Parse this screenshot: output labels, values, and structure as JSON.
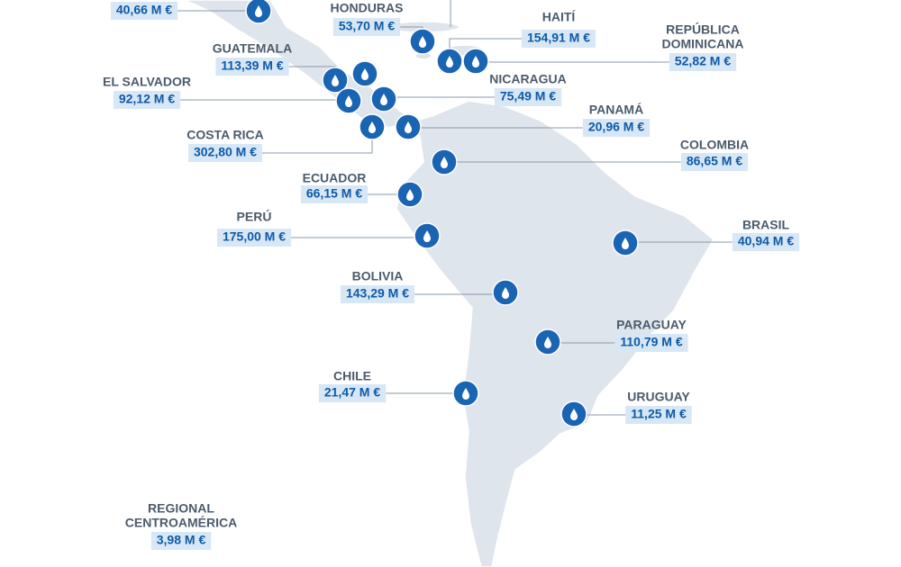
{
  "regions": [
    {
      "amount": "40,66 M €"
    },
    {
      "name_lines": [
        "HONDURAS"
      ],
      "amount": "53,70 M €"
    },
    {
      "name_lines": [
        "HAITÍ"
      ],
      "amount": "154,91 M €"
    },
    {
      "name_lines": [
        "REPÚBLICA",
        "DOMINICANA"
      ],
      "amount": "52,82 M €"
    },
    {
      "name_lines": [
        "GUATEMALA"
      ],
      "amount": "113,39 M €"
    },
    {
      "name_lines": [
        "EL SALVADOR"
      ],
      "amount": "92,12 M €"
    },
    {
      "name_lines": [
        "NICARAGUA"
      ],
      "amount": "75,49 M €"
    },
    {
      "name_lines": [
        "PANAMÁ"
      ],
      "amount": "20,96 M €"
    },
    {
      "name_lines": [
        "COSTA RICA"
      ],
      "amount": "302,80 M €"
    },
    {
      "name_lines": [
        "COLOMBIA"
      ],
      "amount": "86,65 M €"
    },
    {
      "name_lines": [
        "ECUADOR"
      ],
      "amount": "66,15 M €"
    },
    {
      "name_lines": [
        "PERÚ"
      ],
      "amount": "175,00 M €"
    },
    {
      "name_lines": [
        "BRASIL"
      ],
      "amount": "40,94 M €"
    },
    {
      "name_lines": [
        "BOLIVIA"
      ],
      "amount": "143,29 M €"
    },
    {
      "name_lines": [
        "PARAGUAY"
      ],
      "amount": "110,79 M €"
    },
    {
      "name_lines": [
        "CHILE"
      ],
      "amount": "21,47 M €"
    },
    {
      "name_lines": [
        "URUGUAY"
      ],
      "amount": "11,25 M €"
    },
    {
      "name_lines": [
        "REGIONAL",
        "CENTROAMÉRICA"
      ],
      "amount": "3,98 M €"
    }
  ]
}
